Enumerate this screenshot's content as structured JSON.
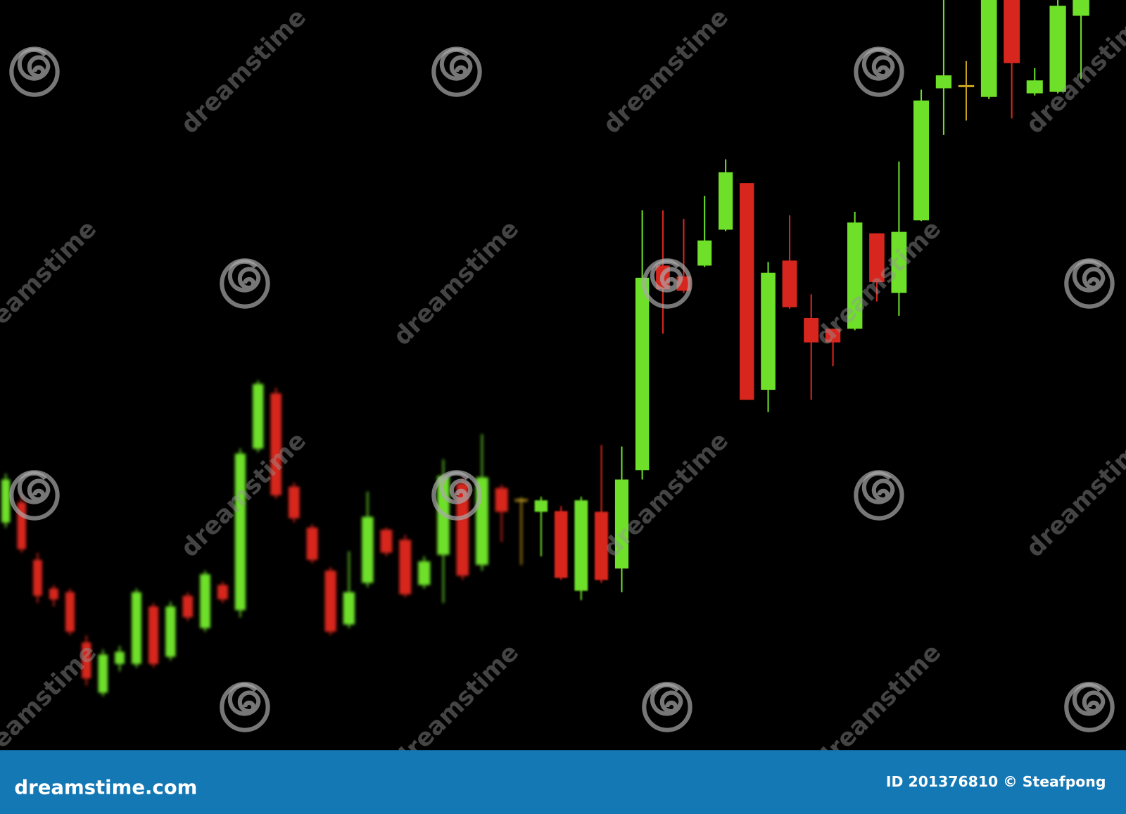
{
  "chart_data": {
    "type": "candlestick",
    "ylim": [
      0,
      1045
    ],
    "up_color": "#6ee02a",
    "down_color": "#d7261e",
    "doji_color": "#c8a020",
    "open": [
      317,
      345,
      265,
      225,
      220,
      150,
      80,
      120,
      120,
      200,
      130,
      215,
      170,
      230,
      195,
      420,
      497,
      367,
      310,
      250,
      175,
      233,
      307,
      293,
      230,
      272,
      372,
      258,
      365,
      348,
      332,
      333,
      222,
      332,
      253,
      390,
      675,
      660,
      675,
      725,
      790,
      502,
      682,
      602,
      587,
      587,
      720,
      637,
      738,
      922,
      925,
      910,
      1045,
      915,
      917,
      1023
    ],
    "high": [
      385,
      355,
      275,
      230,
      225,
      160,
      140,
      145,
      225,
      205,
      207,
      220,
      250,
      235,
      420,
      515,
      505,
      373,
      315,
      255,
      277,
      360,
      310,
      300,
      270,
      405,
      380,
      440,
      370,
      352,
      353,
      340,
      353,
      425,
      423,
      752,
      752,
      740,
      772,
      823,
      790,
      680,
      745,
      635,
      587,
      750,
      720,
      820,
      920,
      1045,
      960,
      1045,
      1045,
      950,
      1045,
      1045
    ],
    "low": [
      310,
      275,
      205,
      200,
      160,
      90,
      75,
      110,
      115,
      115,
      125,
      180,
      165,
      205,
      185,
      415,
      350,
      317,
      260,
      160,
      170,
      227,
      270,
      213,
      225,
      205,
      237,
      250,
      290,
      258,
      270,
      237,
      209,
      233,
      220,
      377,
      580,
      637,
      673,
      723,
      488,
      471,
      615,
      488,
      535,
      585,
      625,
      605,
      737,
      857,
      877,
      907,
      880,
      912,
      915,
      935
    ],
    "close": [
      377,
      280,
      215,
      210,
      165,
      100,
      133,
      137,
      220,
      120,
      200,
      185,
      245,
      210,
      413,
      510,
      355,
      323,
      265,
      165,
      220,
      325,
      275,
      217,
      263,
      382,
      243,
      380,
      332,
      348,
      348,
      240,
      348,
      237,
      377,
      658,
      642,
      640,
      710,
      805,
      488,
      665,
      617,
      568,
      568,
      735,
      652,
      722,
      905,
      940,
      925,
      1045,
      957,
      933,
      1037,
      1045
    ]
  },
  "watermark": "dreamstime",
  "footer": {
    "site": "dreamstime.com",
    "credit": "ID 201376810 © Steafpong"
  }
}
